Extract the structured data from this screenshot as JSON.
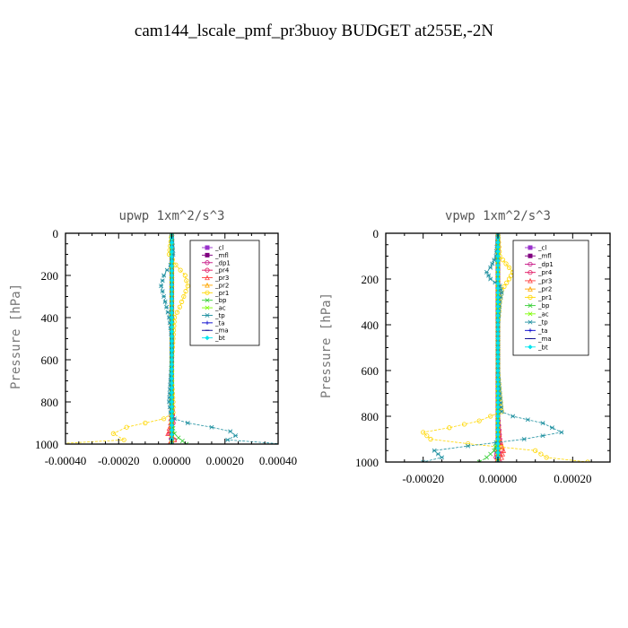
{
  "title": "cam144_lscale_pmf_pr3buoy  BUDGET at255E,-2N",
  "chart_data": [
    {
      "type": "line",
      "title": "upwp   1xm^2/s^3",
      "ylabel": "Pressure [hPa]",
      "xlabel": "",
      "xlim": [
        -0.0004,
        0.0004
      ],
      "ylim": [
        1000,
        0
      ],
      "xticks": [
        -0.0004,
        -0.0002,
        0.0,
        0.0002,
        0.0004
      ],
      "xtick_labels": [
        "-0.00040",
        "-0.00020",
        "0.00000",
        "0.00020",
        "0.00040"
      ],
      "yticks": [
        0,
        200,
        400,
        600,
        800,
        1000
      ],
      "legend": "top-right",
      "series": [
        {
          "name": "_cl",
          "color": "#9932cc",
          "p": [
            0,
            200,
            400,
            600,
            800,
            1000
          ],
          "values": [
            0,
            0,
            0,
            0,
            0,
            0
          ]
        },
        {
          "name": "_mfl",
          "color": "#800080",
          "p": [
            0,
            200,
            400,
            600,
            800,
            1000
          ],
          "values": [
            0,
            0,
            0,
            0,
            0,
            0
          ]
        },
        {
          "name": "_dp1",
          "color": "#c71585",
          "p": [
            0,
            200,
            400,
            600,
            800,
            900,
            950,
            1000
          ],
          "values": [
            0,
            0,
            0,
            0,
            0,
            5e-06,
            -5e-06,
            0
          ]
        },
        {
          "name": "_pr4",
          "color": "#e0115f",
          "p": [
            0,
            200,
            400,
            600,
            800,
            900,
            950,
            980,
            1000
          ],
          "values": [
            0,
            0,
            0,
            0,
            0,
            5e-06,
            -1e-05,
            1e-05,
            -5e-06
          ]
        },
        {
          "name": "_pr3",
          "color": "#ff4040",
          "p": [
            0,
            200,
            400,
            600,
            800,
            900,
            950,
            980,
            1000
          ],
          "values": [
            0,
            0,
            0,
            0,
            0,
            -5e-06,
            -1.5e-05,
            1e-05,
            -1e-05
          ]
        },
        {
          "name": "_pr2",
          "color": "#ffa500",
          "p": [
            0,
            200,
            400,
            600,
            800,
            1000
          ],
          "values": [
            0,
            0,
            0,
            0,
            0,
            0
          ]
        },
        {
          "name": "_pr1",
          "color": "#ffd700",
          "p": [
            0,
            100,
            150,
            200,
            250,
            300,
            350,
            400,
            500,
            600,
            700,
            800,
            850,
            880,
            900,
            920,
            950,
            980,
            1000
          ],
          "values": [
            0,
            -1e-05,
            1.5e-05,
            5e-05,
            6e-05,
            4.5e-05,
            3e-05,
            1e-05,
            5e-06,
            0,
            0,
            5e-06,
            5e-06,
            -3e-05,
            -0.0001,
            -0.00017,
            -0.00022,
            -0.00018,
            -0.00045
          ]
        },
        {
          "name": "_bp",
          "color": "#32cd32",
          "p": [
            0,
            200,
            400,
            600,
            800,
            900,
            950,
            970,
            985,
            1000
          ],
          "values": [
            0,
            0,
            0,
            0,
            0,
            0,
            1e-05,
            2.5e-05,
            4e-05,
            5.5e-05
          ]
        },
        {
          "name": "_ac",
          "color": "#7cfc00",
          "p": [
            0,
            200,
            400,
            600,
            800,
            1000
          ],
          "values": [
            0,
            0,
            0,
            0,
            0,
            0
          ]
        },
        {
          "name": "_tp",
          "color": "#1e90a0",
          "p": [
            0,
            100,
            150,
            200,
            250,
            300,
            350,
            400,
            450,
            500,
            600,
            700,
            800,
            850,
            880,
            900,
            920,
            940,
            960,
            980,
            1000
          ],
          "values": [
            0,
            5e-06,
            -5e-06,
            -3e-05,
            -4e-05,
            -3e-05,
            -2e-05,
            -1e-05,
            -5e-06,
            0,
            0,
            -5e-06,
            -1e-05,
            -5e-06,
            1e-05,
            6e-05,
            0.00015,
            0.00022,
            0.00024,
            0.00021,
            0.00042
          ]
        },
        {
          "name": "_ta",
          "color": "#0000cd",
          "p": [
            0,
            200,
            400,
            600,
            800,
            1000
          ],
          "values": [
            0,
            0,
            0,
            0,
            0,
            0
          ]
        },
        {
          "name": "_ma",
          "color": "#00008b",
          "p": [
            0,
            200,
            400,
            600,
            800,
            1000
          ],
          "values": [
            0,
            0,
            0,
            0,
            0,
            0
          ]
        },
        {
          "name": "_bt",
          "color": "#00e5ee",
          "p": [
            0,
            200,
            400,
            600,
            800,
            1000
          ],
          "values": [
            0,
            0,
            0,
            0,
            0,
            0
          ]
        }
      ]
    },
    {
      "type": "line",
      "title": "vpwp   1xm^2/s^3",
      "ylabel": "Pressure [hPa]",
      "xlabel": "",
      "xlim": [
        -0.0003,
        0.0003
      ],
      "ylim": [
        1000,
        0
      ],
      "xticks": [
        -0.0002,
        0.0,
        0.0002
      ],
      "xtick_labels": [
        "-0.00020",
        "0.00000",
        "0.00020"
      ],
      "yticks": [
        0,
        200,
        400,
        600,
        800,
        1000
      ],
      "legend": "top-right",
      "series": [
        {
          "name": "_cl",
          "color": "#9932cc",
          "p": [
            0,
            200,
            400,
            600,
            800,
            1000
          ],
          "values": [
            0,
            0,
            0,
            0,
            0,
            0
          ]
        },
        {
          "name": "_mfl",
          "color": "#800080",
          "p": [
            0,
            200,
            400,
            600,
            800,
            1000
          ],
          "values": [
            0,
            0,
            0,
            0,
            0,
            0
          ]
        },
        {
          "name": "_dp1",
          "color": "#c71585",
          "p": [
            0,
            200,
            400,
            600,
            800,
            900,
            950,
            1000
          ],
          "values": [
            0,
            0,
            0,
            0,
            0,
            5e-06,
            -5e-06,
            0
          ]
        },
        {
          "name": "_pr4",
          "color": "#e0115f",
          "p": [
            0,
            200,
            400,
            600,
            800,
            900,
            950,
            980,
            1000
          ],
          "values": [
            0,
            0,
            0,
            0,
            0,
            5e-06,
            1e-05,
            -5e-06,
            5e-06
          ]
        },
        {
          "name": "_pr3",
          "color": "#ff4040",
          "p": [
            0,
            200,
            400,
            600,
            800,
            900,
            950,
            980,
            1000
          ],
          "values": [
            0,
            0,
            0,
            0,
            0,
            5e-06,
            1.5e-05,
            1e-05,
            -5e-06
          ]
        },
        {
          "name": "_pr2",
          "color": "#ffa500",
          "p": [
            0,
            200,
            400,
            600,
            800,
            1000
          ],
          "values": [
            0,
            0,
            0,
            0,
            0,
            0
          ]
        },
        {
          "name": "_pr1",
          "color": "#ffd700",
          "p": [
            0,
            100,
            150,
            170,
            200,
            250,
            300,
            400,
            500,
            600,
            700,
            780,
            820,
            850,
            870,
            900,
            920,
            950,
            980,
            1000
          ],
          "values": [
            0,
            5e-06,
            3e-05,
            4e-05,
            3e-05,
            1e-05,
            5e-06,
            0,
            0,
            0,
            5e-06,
            1e-05,
            -5e-05,
            -0.00013,
            -0.0002,
            -0.00018,
            -8e-05,
            0.0001,
            0.00013,
            0.00024
          ]
        },
        {
          "name": "_bp",
          "color": "#32cd32",
          "p": [
            0,
            200,
            400,
            600,
            800,
            900,
            950,
            980,
            1000
          ],
          "values": [
            0,
            0,
            0,
            0,
            0,
            0,
            -1e-05,
            -3e-05,
            -5e-05
          ]
        },
        {
          "name": "_ac",
          "color": "#7cfc00",
          "p": [
            0,
            200,
            400,
            600,
            800,
            1000
          ],
          "values": [
            0,
            0,
            0,
            0,
            0,
            0
          ]
        },
        {
          "name": "_tp",
          "color": "#1e90a0",
          "p": [
            0,
            100,
            150,
            170,
            200,
            230,
            260,
            300,
            400,
            500,
            600,
            700,
            780,
            800,
            830,
            870,
            900,
            930,
            950,
            980,
            1000
          ],
          "values": [
            0,
            -5e-06,
            -2e-05,
            -3e-05,
            -2e-05,
            5e-06,
            1e-05,
            5e-06,
            0,
            0,
            0,
            5e-06,
            1e-05,
            4e-05,
            0.00012,
            0.00017,
            7e-05,
            -8e-05,
            -0.00017,
            -0.00015,
            -0.0002
          ]
        },
        {
          "name": "_ta",
          "color": "#0000cd",
          "p": [
            0,
            200,
            400,
            600,
            800,
            1000
          ],
          "values": [
            0,
            0,
            0,
            0,
            0,
            0
          ]
        },
        {
          "name": "_ma",
          "color": "#00008b",
          "p": [
            0,
            200,
            400,
            600,
            800,
            1000
          ],
          "values": [
            0,
            0,
            0,
            0,
            0,
            0
          ]
        },
        {
          "name": "_bt",
          "color": "#00e5ee",
          "p": [
            0,
            200,
            400,
            600,
            800,
            1000
          ],
          "values": [
            0,
            0,
            0,
            0,
            0,
            0
          ]
        }
      ]
    }
  ]
}
